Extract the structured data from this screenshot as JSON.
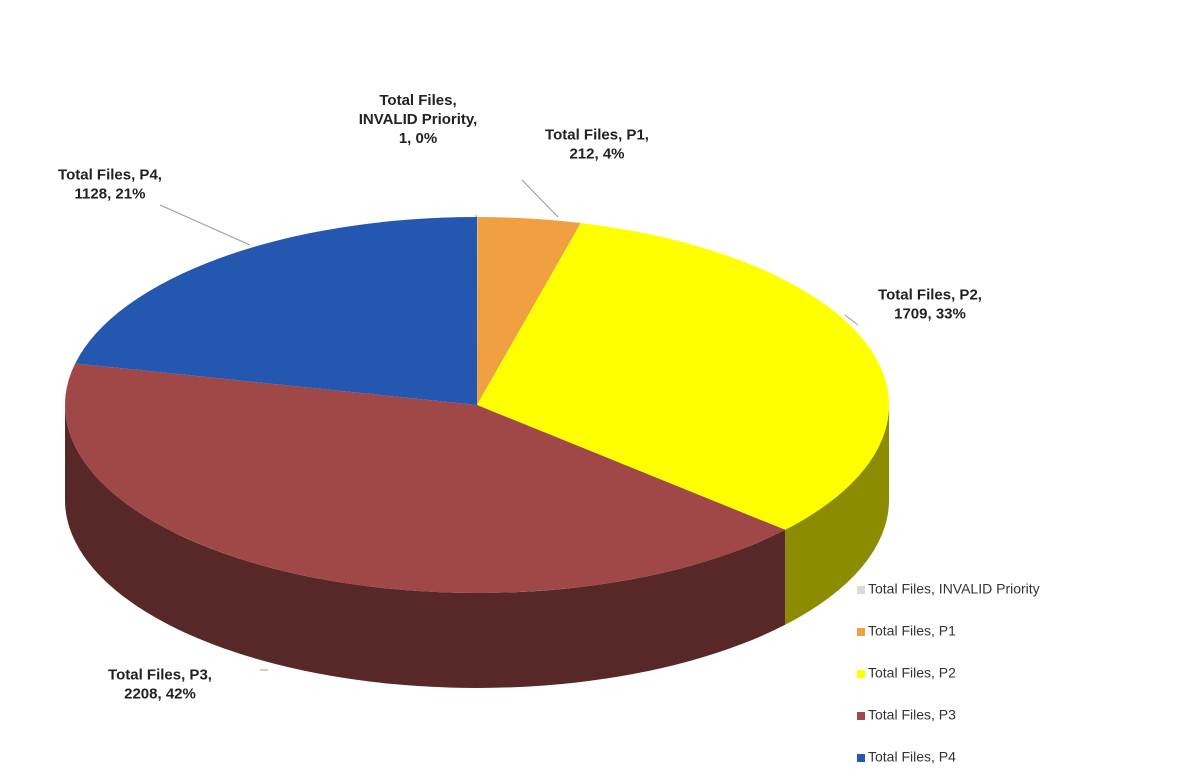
{
  "chart_data": {
    "type": "pie",
    "categories": [
      "Total Files, INVALID Priority",
      "Total Files, P1",
      "Total Files, P2",
      "Total Files, P3",
      "Total Files, P4"
    ],
    "values": [
      1,
      212,
      1709,
      2208,
      1128
    ],
    "value_labels": [
      "Total Files, INVALID Priority, 1, 0%",
      "Total Files, P1, 212, 4%",
      "Total Files, P2, 1709, 33%",
      "Total Files, P3, 2208, 42%",
      "Total Files, P4, 1128, 21%"
    ],
    "colors": [
      "#d9d9d9",
      "#f0a040",
      "#ffff00",
      "#a04848",
      "#2458b0"
    ],
    "legend": "right-bottom"
  }
}
